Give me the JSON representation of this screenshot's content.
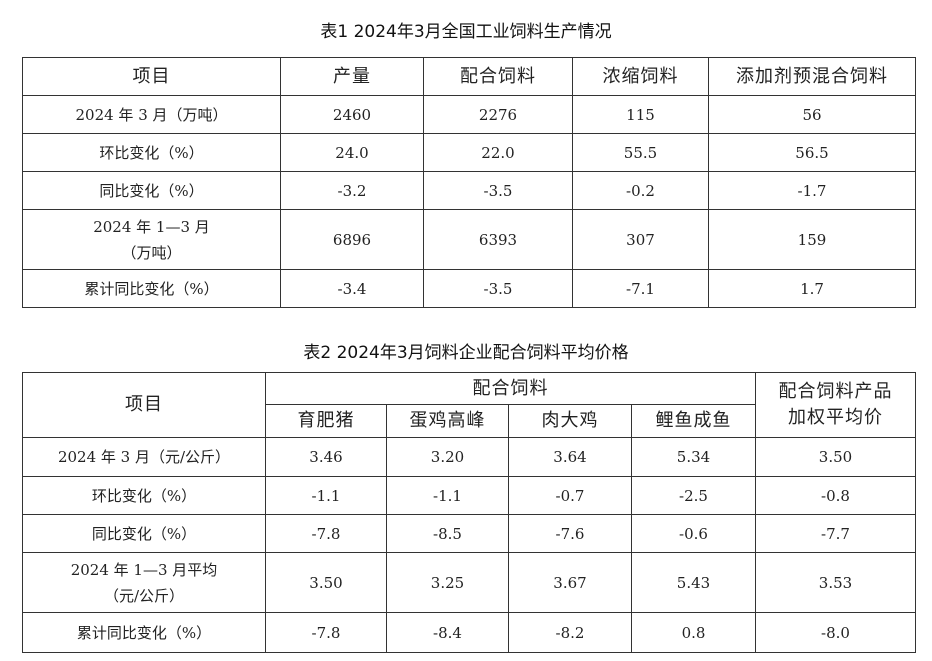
{
  "table1": {
    "title": "表1  2024年3月全国工业饲料生产情况",
    "headers": [
      "项目",
      "产量",
      "配合饲料",
      "浓缩饲料",
      "添加剂预混合饲料"
    ],
    "rows": [
      {
        "label": "2024 年 3 月（万吨）",
        "label2": "",
        "values": [
          "2460",
          "2276",
          "115",
          "56"
        ]
      },
      {
        "label": "环比变化（%）",
        "label2": "",
        "values": [
          "24.0",
          "22.0",
          "55.5",
          "56.5"
        ]
      },
      {
        "label": "同比变化（%）",
        "label2": "",
        "values": [
          "-3.2",
          "-3.5",
          "-0.2",
          "-1.7"
        ]
      },
      {
        "label": "2024 年 1—3 月",
        "label2": "（万吨）",
        "values": [
          "6896",
          "6393",
          "307",
          "159"
        ]
      },
      {
        "label": "累计同比变化（%）",
        "label2": "",
        "values": [
          "-3.4",
          "-3.5",
          "-7.1",
          "1.7"
        ]
      }
    ]
  },
  "table2": {
    "title": "表2  2024年3月饲料企业配合饲料平均价格",
    "header_item": "项目",
    "group_header": "配合饲料",
    "sub_headers": [
      "育肥猪",
      "蛋鸡高峰",
      "肉大鸡",
      "鲤鱼成鱼"
    ],
    "last_header_line1": "配合饲料产品",
    "last_header_line2": "加权平均价",
    "rows": [
      {
        "label": "2024 年 3 月（元/公斤）",
        "label2": "",
        "values": [
          "3.46",
          "3.20",
          "3.64",
          "5.34",
          "3.50"
        ]
      },
      {
        "label": "环比变化（%）",
        "label2": "",
        "values": [
          "-1.1",
          "-1.1",
          "-0.7",
          "-2.5",
          "-0.8"
        ]
      },
      {
        "label": "同比变化（%）",
        "label2": "",
        "values": [
          "-7.8",
          "-8.5",
          "-7.6",
          "-0.6",
          "-7.7"
        ]
      },
      {
        "label": "2024 年 1—3 月平均",
        "label2": "（元/公斤）",
        "values": [
          "3.50",
          "3.25",
          "3.67",
          "5.43",
          "3.53"
        ]
      },
      {
        "label": "累计同比变化（%）",
        "label2": "",
        "values": [
          "-7.8",
          "-8.4",
          "-8.2",
          "0.8",
          "-8.0"
        ]
      }
    ]
  }
}
